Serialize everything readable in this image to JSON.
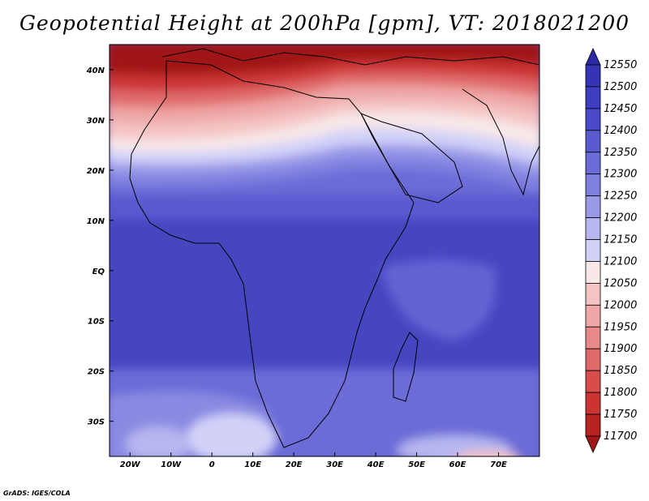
{
  "title": "Geopotential Height at 200hPa [gpm], VT: 2018021200",
  "credit": "GrADS: IGES/COLA",
  "map": {
    "region": "Africa",
    "lon_range": [
      -25,
      80
    ],
    "lat_range": [
      -37,
      45
    ],
    "x_ticks": [
      "20W",
      "10W",
      "0",
      "10E",
      "20E",
      "30E",
      "40E",
      "50E",
      "60E",
      "70E"
    ],
    "y_ticks": [
      "40N",
      "30N",
      "20N",
      "10N",
      "EQ",
      "10S",
      "20S",
      "30S"
    ]
  },
  "colorbar": {
    "levels": [
      "12550",
      "12500",
      "12450",
      "12400",
      "12350",
      "12300",
      "12250",
      "12200",
      "12150",
      "12100",
      "12050",
      "12000",
      "11950",
      "11900",
      "11850",
      "11800",
      "11750",
      "11700"
    ],
    "colors": [
      "#2a2aa6",
      "#3434b4",
      "#3e3ec0",
      "#4a4ac8",
      "#5a5ad0",
      "#6c6cd8",
      "#8080e0",
      "#9a9ae8",
      "#b6b6f0",
      "#d2d2f8",
      "#f8e8e8",
      "#f4c4c4",
      "#eea6a6",
      "#e88a8a",
      "#e06a6a",
      "#d84c4c",
      "#cc3434",
      "#b82222",
      "#a01818"
    ]
  }
}
